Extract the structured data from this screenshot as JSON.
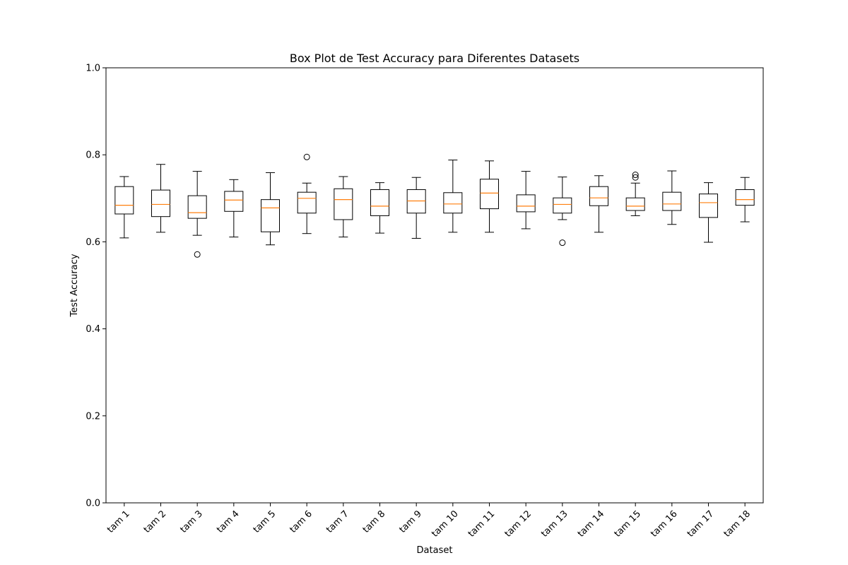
{
  "chart_data": {
    "type": "box",
    "title": "Box Plot de Test Accuracy para Diferentes Datasets",
    "xlabel": "Dataset",
    "ylabel": "Test Accuracy",
    "ylim": [
      0,
      1
    ],
    "yticks": [
      "0.0",
      "0.2",
      "0.4",
      "0.6",
      "0.8",
      "1.0"
    ],
    "grid": false,
    "colors": {
      "box": "#000000",
      "median": "#ff7f0e",
      "axes": "#000000"
    },
    "categories": [
      "tam 1",
      "tam 2",
      "tam 3",
      "tam 4",
      "tam 5",
      "tam 6",
      "tam 7",
      "tam 8",
      "tam 9",
      "tam 10",
      "tam 11",
      "tam 12",
      "tam 13",
      "tam 14",
      "tam 15",
      "tam 16",
      "tam 17",
      "tam 18"
    ],
    "boxes": [
      {
        "whisker_low": 0.609,
        "q1": 0.664,
        "median": 0.684,
        "q3": 0.727,
        "whisker_high": 0.75,
        "outliers": []
      },
      {
        "whisker_low": 0.622,
        "q1": 0.658,
        "median": 0.686,
        "q3": 0.719,
        "whisker_high": 0.778,
        "outliers": []
      },
      {
        "whisker_low": 0.615,
        "q1": 0.654,
        "median": 0.667,
        "q3": 0.706,
        "whisker_high": 0.762,
        "outliers": [
          0.571
        ]
      },
      {
        "whisker_low": 0.611,
        "q1": 0.67,
        "median": 0.696,
        "q3": 0.716,
        "whisker_high": 0.743,
        "outliers": []
      },
      {
        "whisker_low": 0.593,
        "q1": 0.623,
        "median": 0.678,
        "q3": 0.697,
        "whisker_high": 0.759,
        "outliers": []
      },
      {
        "whisker_low": 0.619,
        "q1": 0.666,
        "median": 0.7,
        "q3": 0.714,
        "whisker_high": 0.735,
        "outliers": [
          0.795
        ]
      },
      {
        "whisker_low": 0.611,
        "q1": 0.651,
        "median": 0.697,
        "q3": 0.722,
        "whisker_high": 0.75,
        "outliers": []
      },
      {
        "whisker_low": 0.62,
        "q1": 0.66,
        "median": 0.682,
        "q3": 0.72,
        "whisker_high": 0.736,
        "outliers": []
      },
      {
        "whisker_low": 0.608,
        "q1": 0.666,
        "median": 0.694,
        "q3": 0.72,
        "whisker_high": 0.748,
        "outliers": []
      },
      {
        "whisker_low": 0.622,
        "q1": 0.666,
        "median": 0.687,
        "q3": 0.713,
        "whisker_high": 0.788,
        "outliers": []
      },
      {
        "whisker_low": 0.622,
        "q1": 0.676,
        "median": 0.712,
        "q3": 0.744,
        "whisker_high": 0.786,
        "outliers": []
      },
      {
        "whisker_low": 0.63,
        "q1": 0.669,
        "median": 0.682,
        "q3": 0.708,
        "whisker_high": 0.762,
        "outliers": []
      },
      {
        "whisker_low": 0.651,
        "q1": 0.666,
        "median": 0.686,
        "q3": 0.701,
        "whisker_high": 0.749,
        "outliers": [
          0.598
        ]
      },
      {
        "whisker_low": 0.622,
        "q1": 0.683,
        "median": 0.701,
        "q3": 0.727,
        "whisker_high": 0.752,
        "outliers": []
      },
      {
        "whisker_low": 0.66,
        "q1": 0.672,
        "median": 0.682,
        "q3": 0.701,
        "whisker_high": 0.735,
        "outliers": [
          0.748,
          0.754
        ]
      },
      {
        "whisker_low": 0.64,
        "q1": 0.672,
        "median": 0.687,
        "q3": 0.714,
        "whisker_high": 0.763,
        "outliers": []
      },
      {
        "whisker_low": 0.599,
        "q1": 0.656,
        "median": 0.69,
        "q3": 0.71,
        "whisker_high": 0.736,
        "outliers": []
      },
      {
        "whisker_low": 0.646,
        "q1": 0.684,
        "median": 0.697,
        "q3": 0.72,
        "whisker_high": 0.748,
        "outliers": []
      }
    ]
  }
}
